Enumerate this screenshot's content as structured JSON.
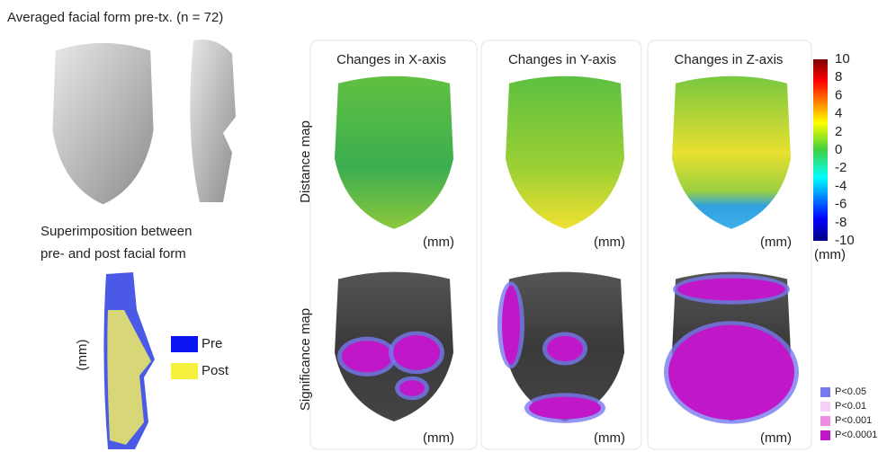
{
  "title": "Averaged facial form pre-tx. (n = 72)",
  "superimposition": {
    "title_lines": [
      "Superimposition between",
      "pre- and post facial form"
    ],
    "axis_label": "(mm)",
    "legend": [
      {
        "label": "Pre",
        "color": "#0a14f0"
      },
      {
        "label": "Post",
        "color": "#f4f03c"
      }
    ]
  },
  "columns": [
    "Changes in X-axis",
    "Changes in Y-axis",
    "Changes in Z-axis"
  ],
  "rows": [
    "Distance map",
    "Significance map"
  ],
  "panel_unit": "(mm)",
  "colorbar": {
    "ticks": [
      10,
      8,
      6,
      4,
      2,
      0,
      -2,
      -4,
      -6,
      -8,
      -10
    ],
    "unit": "(mm)"
  },
  "significance_legend": [
    {
      "label": "P<0.05",
      "color": "#7878f0"
    },
    {
      "label": "P<0.01",
      "color": "#f6d0f4"
    },
    {
      "label": "P<0.001",
      "color": "#ee8ee0"
    },
    {
      "label": "P<0.0001",
      "color": "#c018c8"
    }
  ]
}
